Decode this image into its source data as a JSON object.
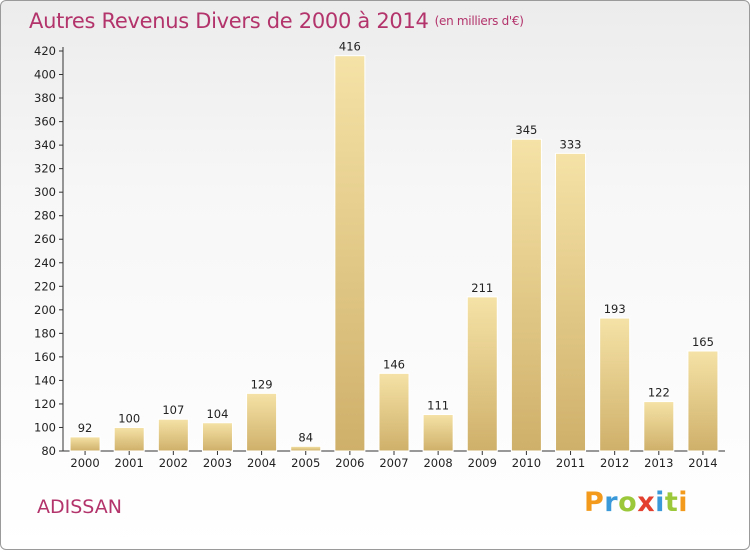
{
  "header": {
    "title": "Autres Revenus Divers de 2000 à 2014",
    "unit": "(en milliers d'€)"
  },
  "footer": {
    "commune": "ADISSAN",
    "logo_text": "Proxiti"
  },
  "colors": {
    "title": "#b3336b",
    "bar_light": "#f5e2a6",
    "bar_dark": "#cfb06a",
    "axis": "#333333"
  },
  "chart_data": {
    "type": "bar",
    "title": "Autres Revenus Divers de 2000 à 2014",
    "xlabel": "",
    "ylabel": "",
    "categories": [
      "2000",
      "2001",
      "2002",
      "2003",
      "2004",
      "2005",
      "2006",
      "2007",
      "2008",
      "2009",
      "2010",
      "2011",
      "2012",
      "2013",
      "2014"
    ],
    "values": [
      92,
      100,
      107,
      104,
      129,
      84,
      416,
      146,
      111,
      211,
      345,
      333,
      193,
      122,
      165
    ],
    "ylim": [
      80,
      420
    ],
    "ytick_step": 20,
    "grid": false,
    "legend": "none"
  }
}
